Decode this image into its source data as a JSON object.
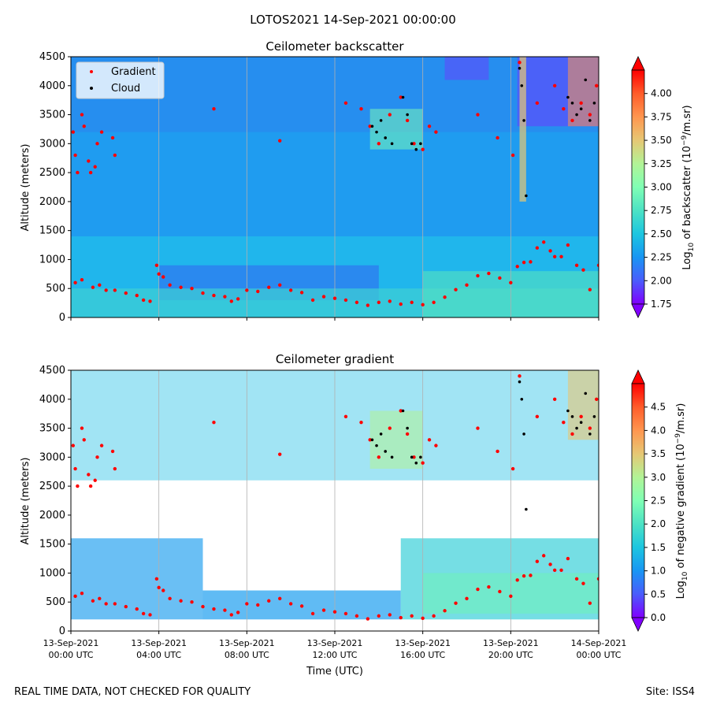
{
  "suptitle": "LOTOS2021 14-Sep-2021 00:00:00",
  "footer": {
    "left": "REAL TIME DATA, NOT CHECKED FOR QUALITY",
    "right": "Site: ISS4"
  },
  "legend": {
    "placement": "upper-left",
    "items": [
      {
        "label": "Gradient",
        "color": "#ff0000",
        "marker": "dot"
      },
      {
        "label": "Cloud",
        "color": "#000000",
        "marker": "dot"
      }
    ]
  },
  "colors": {
    "gradient_points": "#ff0000",
    "cloud_points": "#000000",
    "grid": "#b0b0b0",
    "colormap": [
      "#8000ff",
      "#4a5cfc",
      "#1996f3",
      "#1cc6e0",
      "#4ce2c4",
      "#80ffb4",
      "#b2f396",
      "#e6c774",
      "#ff964f",
      "#ff5c2a",
      "#ff0000"
    ]
  },
  "x_axis": {
    "label": "Time (UTC)",
    "ticks": [
      {
        "l1": "13-Sep-2021",
        "l2": "00:00 UTC"
      },
      {
        "l1": "13-Sep-2021",
        "l2": "04:00 UTC"
      },
      {
        "l1": "13-Sep-2021",
        "l2": "08:00 UTC"
      },
      {
        "l1": "13-Sep-2021",
        "l2": "12:00 UTC"
      },
      {
        "l1": "13-Sep-2021",
        "l2": "16:00 UTC"
      },
      {
        "l1": "13-Sep-2021",
        "l2": "20:00 UTC"
      },
      {
        "l1": "14-Sep-2021",
        "l2": "00:00 UTC"
      }
    ]
  },
  "chart_data": [
    {
      "type": "heatmap",
      "title": "Ceilometer backscatter",
      "ylabel": "Altitude (meters)",
      "ylim": [
        0,
        4500
      ],
      "yticks": [
        0,
        500,
        1000,
        1500,
        2000,
        2500,
        3000,
        3500,
        4000,
        4500
      ],
      "xlim_hours_utc": [
        0,
        24
      ],
      "grid": "vertical lines at x ticks",
      "colorbar": {
        "label_pre": "Log",
        "label_sub": "10",
        "label_post": " of backscatter (10",
        "label_sup": "−9",
        "label_end": "/m.sr)",
        "range": [
          1.75,
          4.25
        ],
        "ticks": [
          1.75,
          2.0,
          2.25,
          2.5,
          2.75,
          3.0,
          3.25,
          3.5,
          3.75,
          4.0
        ],
        "extend": "both"
      }
    },
    {
      "type": "heatmap",
      "title": "Ceilometer gradient",
      "ylabel": "Altitude (meters)",
      "ylim": [
        0,
        4500
      ],
      "yticks": [
        0,
        500,
        1000,
        1500,
        2000,
        2500,
        3000,
        3500,
        4000,
        4500
      ],
      "xlim_hours_utc": [
        0,
        24
      ],
      "grid": "vertical lines at x ticks",
      "colorbar": {
        "label_pre": "Log",
        "label_sub": "10",
        "label_post": " of negative gradient (10",
        "label_sup": "−9",
        "label_end": "/m.sr)",
        "range": [
          0.0,
          5.0
        ],
        "ticks": [
          0.0,
          0.5,
          1.0,
          1.5,
          2.0,
          2.5,
          3.0,
          3.5,
          4.0,
          4.5
        ],
        "extend": "both"
      }
    }
  ],
  "gradient_series": {
    "name": "Gradient",
    "x_hours": [
      0.2,
      0.5,
      1.0,
      1.3,
      1.6,
      2.0,
      2.5,
      3.0,
      3.3,
      3.6,
      3.9,
      4.0,
      4.2,
      4.5,
      5.0,
      5.5,
      6.0,
      6.5,
      7.0,
      7.3,
      7.6,
      8.0,
      8.5,
      9.0,
      9.5,
      10.0,
      10.5,
      11.0,
      11.5,
      12.0,
      12.5,
      13.0,
      13.5,
      14.0,
      14.5,
      15.0,
      15.5,
      16.0,
      16.5,
      17.0,
      17.5,
      18.0,
      18.5,
      19.0,
      19.5,
      20.0,
      20.3,
      20.6,
      20.9,
      21.2,
      21.5,
      21.8,
      22.0,
      22.3,
      22.6,
      23.0,
      23.3,
      23.6,
      24.0
    ],
    "y_m": [
      600,
      650,
      520,
      560,
      470,
      470,
      420,
      380,
      300,
      280,
      900,
      750,
      700,
      560,
      520,
      500,
      420,
      380,
      360,
      280,
      320,
      470,
      450,
      520,
      560,
      470,
      430,
      300,
      360,
      330,
      300,
      260,
      210,
      260,
      280,
      230,
      260,
      220,
      260,
      350,
      480,
      560,
      720,
      760,
      680,
      600,
      880,
      950,
      960,
      1200,
      1300,
      1150,
      1050,
      1050,
      1250,
      900,
      820,
      480,
      900
    ],
    "upper_x_hours": [
      0.1,
      0.2,
      0.3,
      0.5,
      0.6,
      0.8,
      0.9,
      1.1,
      1.2,
      1.4,
      1.9,
      2.0,
      6.5,
      9.5,
      12.5,
      13.2,
      13.6,
      14.0,
      14.5,
      15.0,
      15.3,
      15.6,
      16.0,
      16.3,
      16.6,
      18.5,
      19.4,
      20.1,
      20.4,
      21.2,
      22.0,
      22.4,
      22.8,
      23.2,
      23.6,
      23.9
    ],
    "upper_y_m": [
      3200,
      2800,
      2500,
      3500,
      3300,
      2700,
      2500,
      2600,
      3000,
      3200,
      3100,
      2800,
      3600,
      3050,
      3700,
      3600,
      3300,
      3000,
      3500,
      3800,
      3400,
      3000,
      2900,
      3300,
      3200,
      3500,
      3100,
      2800,
      4400,
      3700,
      4000,
      3600,
      3400,
      3700,
      3500,
      4000
    ]
  },
  "cloud_series": {
    "name": "Cloud",
    "x_hours": [
      13.7,
      13.9,
      14.1,
      14.3,
      14.6,
      15.1,
      15.3,
      15.5,
      15.7,
      15.9,
      20.4,
      20.5,
      20.6,
      20.7,
      22.6,
      22.8,
      23.0,
      23.2,
      23.4,
      23.6,
      23.8
    ],
    "y_m": [
      3300,
      3200,
      3400,
      3100,
      3000,
      3800,
      3500,
      3000,
      2900,
      3000,
      4300,
      4000,
      3400,
      2100,
      3800,
      3700,
      3500,
      3600,
      4100,
      3400,
      3700
    ]
  }
}
